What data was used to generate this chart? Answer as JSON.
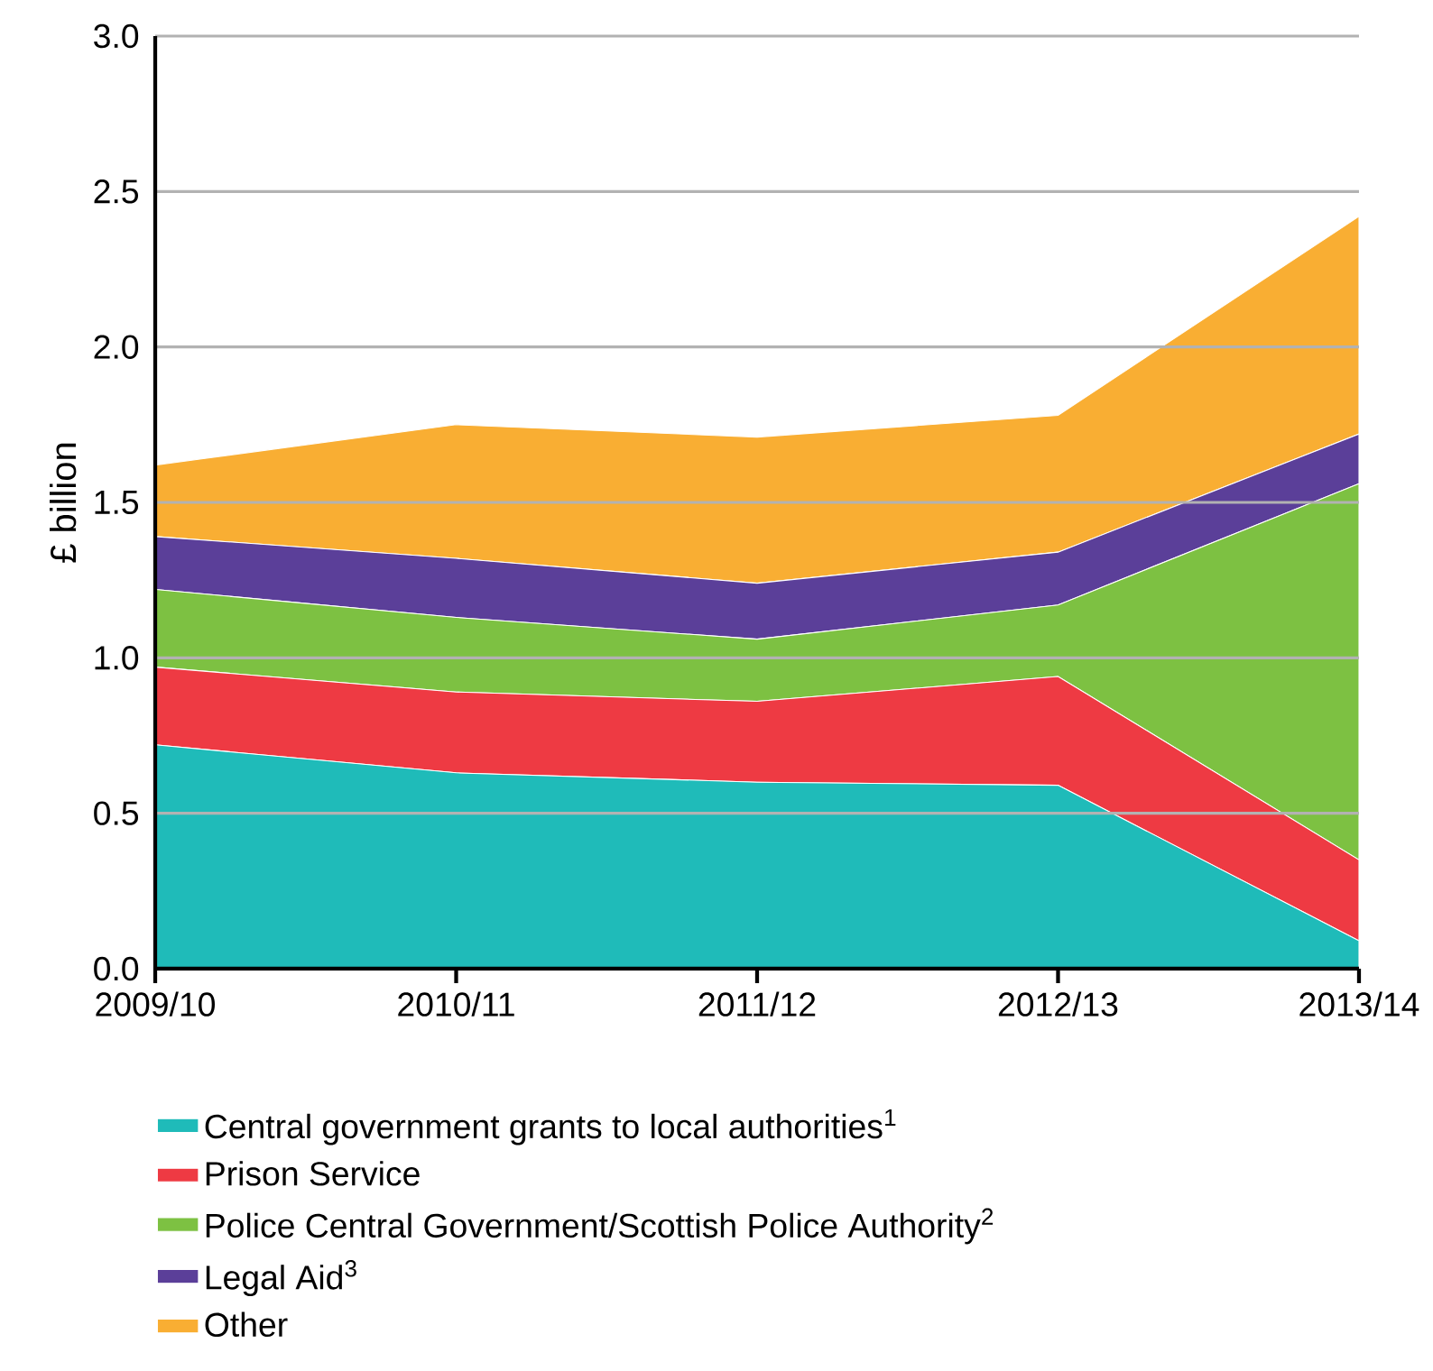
{
  "chart_data": {
    "type": "area",
    "stacked": true,
    "ylabel": "£ billion",
    "categories": [
      "2009/10",
      "2010/11",
      "2011/12",
      "2012/13",
      "2013/14"
    ],
    "series": [
      {
        "name": "Central government grants to local authorities$^{1}$",
        "color": "#1fbbb9",
        "values": [
          0.72,
          0.63,
          0.6,
          0.59,
          0.09
        ]
      },
      {
        "name": "Prison Service",
        "color": "#ee3a43",
        "values": [
          0.25,
          0.26,
          0.26,
          0.35,
          0.26
        ]
      },
      {
        "name": "Police Central Government/Scottish Police Authority$^{2}$",
        "color": "#7dc142",
        "values": [
          0.25,
          0.24,
          0.2,
          0.23,
          1.21
        ]
      },
      {
        "name": "Legal Aid$^{3}$",
        "color": "#5b3f99",
        "values": [
          0.17,
          0.19,
          0.18,
          0.17,
          0.16
        ]
      },
      {
        "name": "Other",
        "color": "#f9ae33",
        "values": [
          0.23,
          0.43,
          0.47,
          0.44,
          0.7
        ]
      }
    ],
    "ylim": [
      0,
      3
    ],
    "yticks": [
      {
        "value": 0,
        "label": "0.0"
      },
      {
        "value": 0.5,
        "label": "0.5"
      },
      {
        "value": 1,
        "label": "1.0"
      },
      {
        "value": 1.5,
        "label": "1.5"
      },
      {
        "value": 2,
        "label": "2.0"
      },
      {
        "value": 2.5,
        "label": "2.5"
      },
      {
        "value": 3,
        "label": "3.0"
      }
    ],
    "grid": "y",
    "legend": "bottom"
  }
}
